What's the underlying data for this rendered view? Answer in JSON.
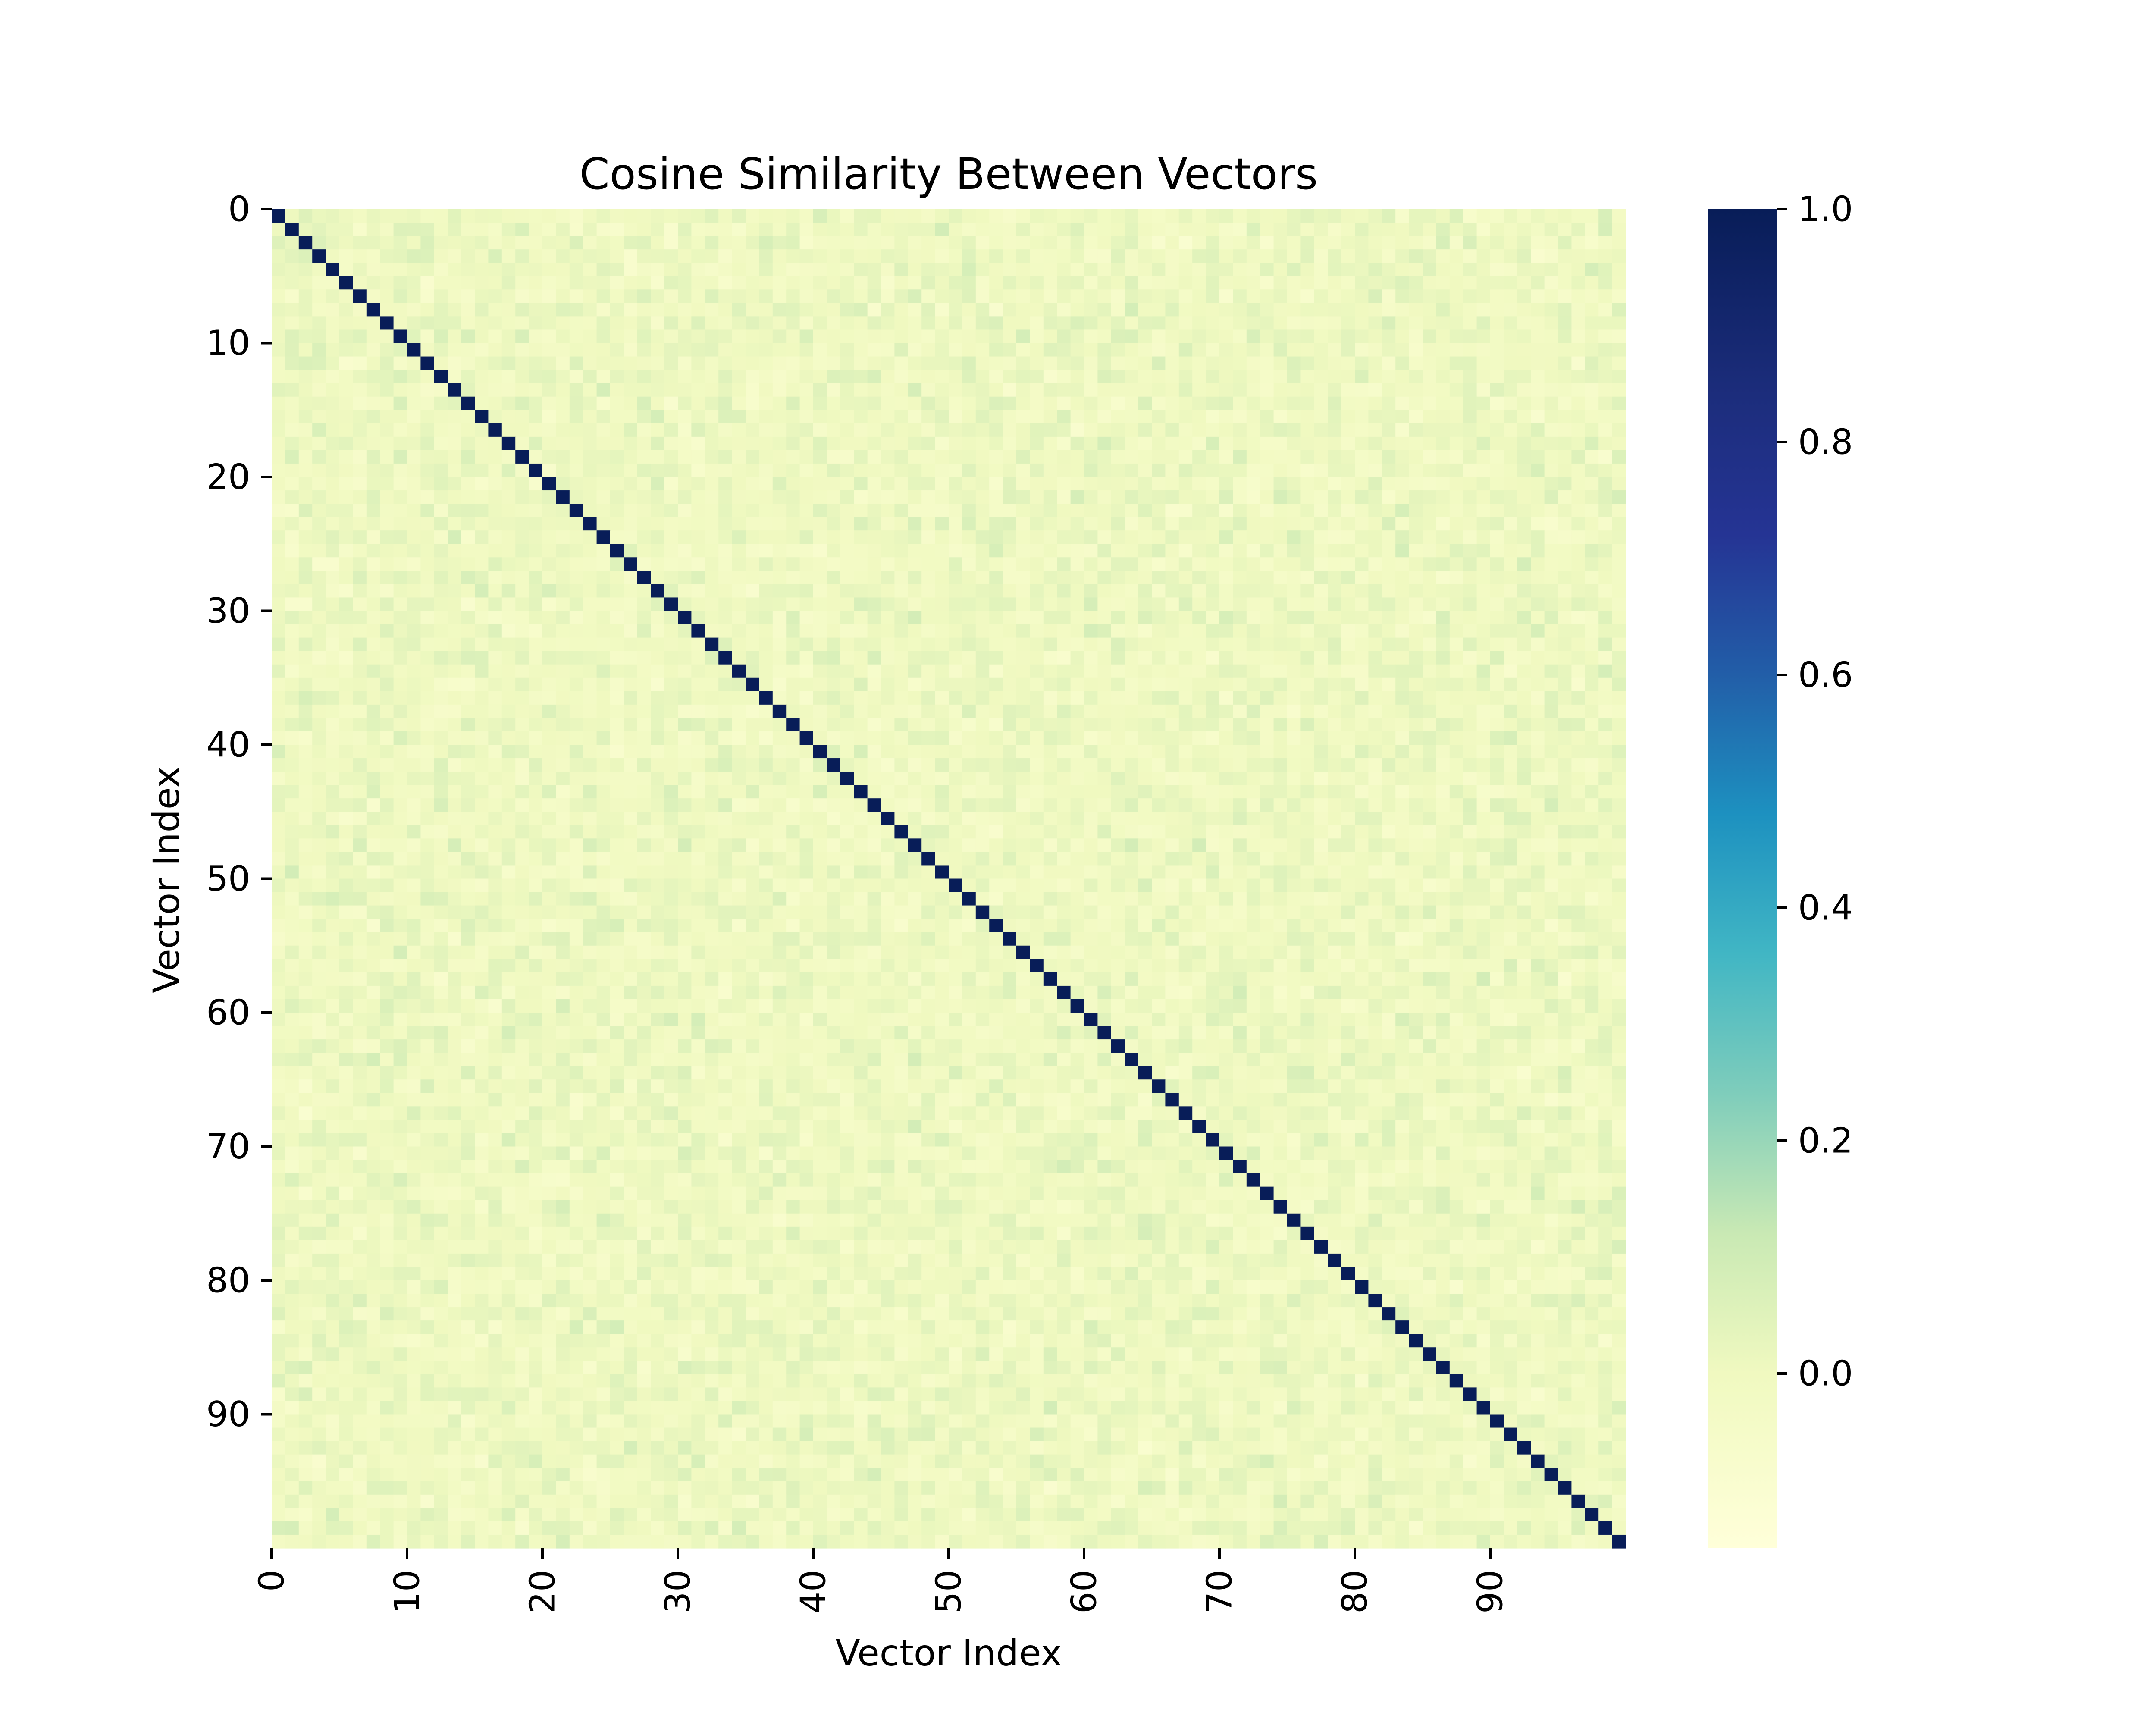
{
  "chart_data": {
    "type": "heatmap",
    "title": "Cosine Similarity Between Vectors",
    "xlabel": "Vector Index",
    "ylabel": "Vector Index",
    "n": 100,
    "x_ticks": [
      0,
      10,
      20,
      30,
      40,
      50,
      60,
      70,
      80,
      90
    ],
    "y_ticks": [
      0,
      10,
      20,
      30,
      40,
      50,
      60,
      70,
      80,
      90
    ],
    "values": {
      "diagonal": 1.0,
      "off_diagonal_range": [
        -0.1,
        0.1
      ]
    },
    "colorbar": {
      "colormap": "YlGnBu",
      "vmin": -0.15,
      "vmax": 1.0,
      "ticks": [
        "0.0",
        "0.2",
        "0.4",
        "0.6",
        "0.8",
        "1.0"
      ],
      "tick_values": [
        0.0,
        0.2,
        0.4,
        0.6,
        0.8,
        1.0
      ]
    },
    "grid": false
  }
}
